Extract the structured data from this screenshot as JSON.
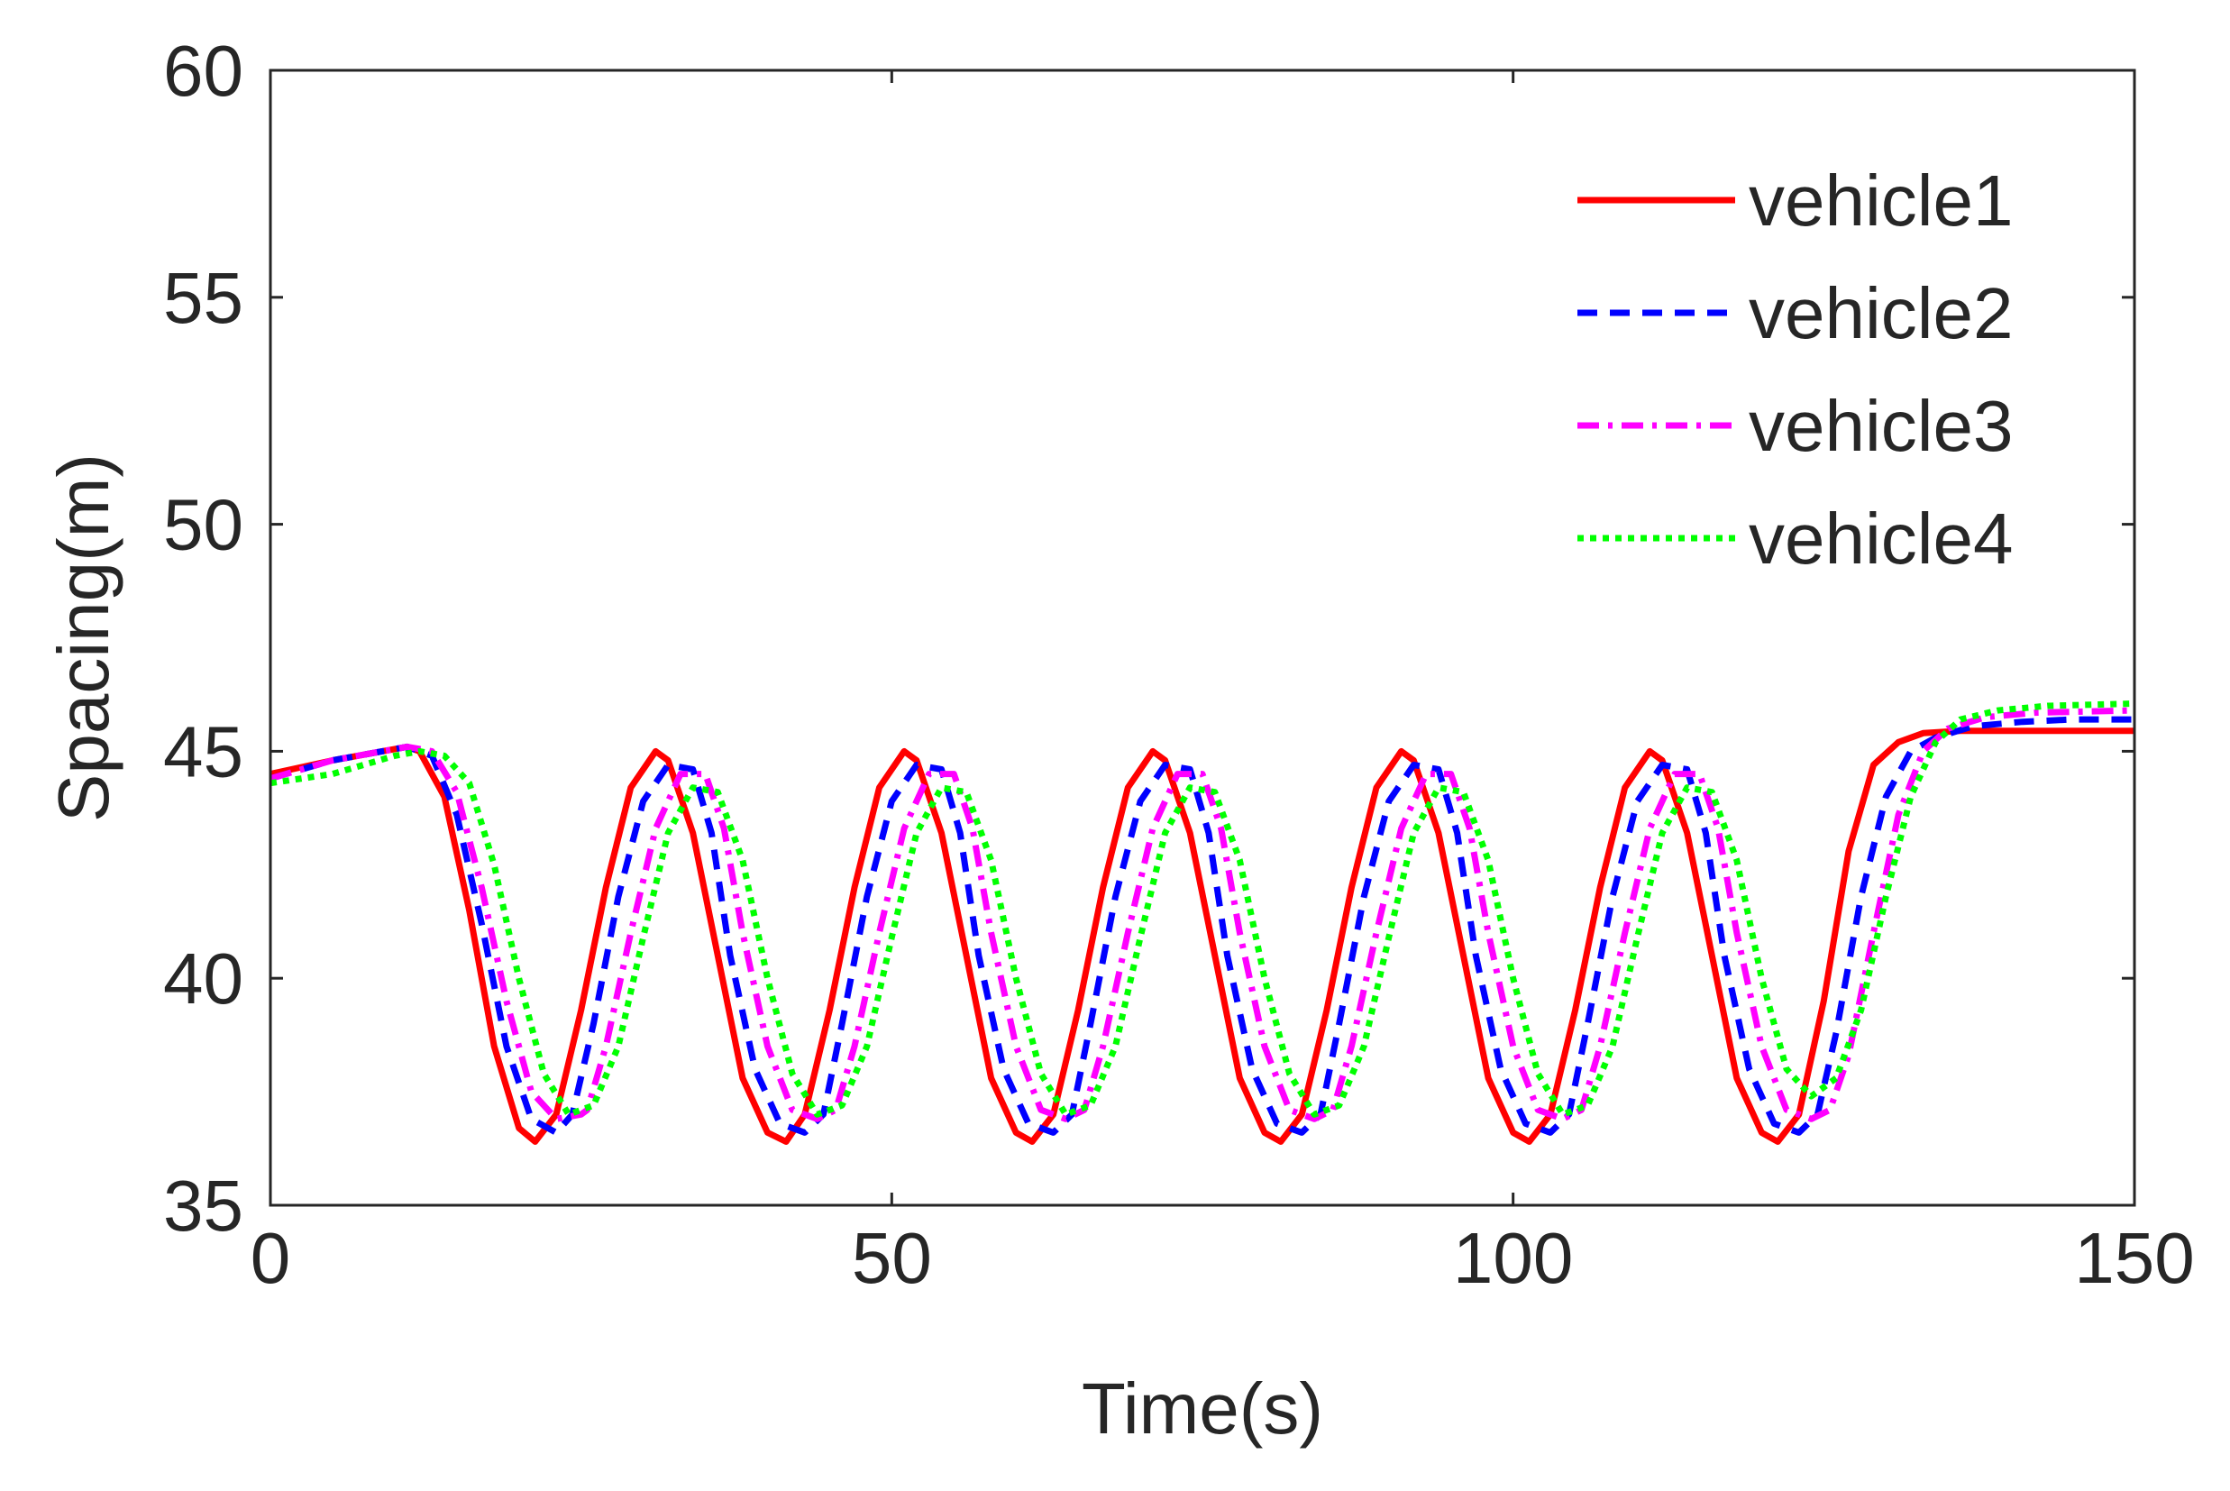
{
  "chart_data": {
    "type": "line",
    "title": "",
    "xlabel": "Time(s)",
    "ylabel": "Spacing(m)",
    "xlim": [
      0,
      150
    ],
    "ylim": [
      35,
      60
    ],
    "xticks": [
      0,
      50,
      100,
      150
    ],
    "yticks": [
      35,
      40,
      45,
      50,
      55,
      60
    ],
    "grid": false,
    "legend_position": "top-right",
    "series": [
      {
        "name": "vehicle1",
        "color": "#ff0000",
        "dash": "solid",
        "x": [
          0,
          5,
          11,
          12,
          14,
          16,
          18,
          20,
          21.3,
          23,
          25,
          27,
          29,
          31,
          32,
          34,
          36,
          38,
          40,
          41.5,
          43,
          45,
          47,
          49,
          51,
          52,
          54,
          56,
          58,
          60,
          61.3,
          63,
          65,
          67,
          69,
          71,
          72,
          74,
          76,
          78,
          80,
          81.3,
          83,
          85,
          87,
          89,
          91,
          92,
          94,
          96,
          98,
          100,
          101.3,
          103,
          105,
          107,
          109,
          111,
          112,
          114,
          116,
          118,
          120,
          121.3,
          123,
          125,
          127,
          129,
          131,
          133,
          136,
          140,
          145,
          150
        ],
        "y": [
          44.5,
          44.8,
          45.1,
          45.0,
          44.0,
          41.5,
          38.5,
          36.7,
          36.4,
          37.0,
          39.3,
          42.0,
          44.2,
          45.0,
          44.8,
          43.2,
          40.5,
          37.8,
          36.6,
          36.4,
          37.0,
          39.3,
          42.0,
          44.2,
          45.0,
          44.8,
          43.2,
          40.5,
          37.8,
          36.6,
          36.4,
          37.0,
          39.3,
          42.0,
          44.2,
          45.0,
          44.8,
          43.2,
          40.5,
          37.8,
          36.6,
          36.4,
          37.0,
          39.3,
          42.0,
          44.2,
          45.0,
          44.8,
          43.2,
          40.5,
          37.8,
          36.6,
          36.4,
          37.0,
          39.3,
          42.0,
          44.2,
          45.0,
          44.8,
          43.2,
          40.5,
          37.8,
          36.6,
          36.4,
          37.0,
          39.5,
          42.8,
          44.7,
          45.2,
          45.4,
          45.45,
          45.45,
          45.45,
          45.45
        ]
      },
      {
        "name": "vehicle2",
        "color": "#0000ff",
        "dash": "dashed",
        "x": [
          0,
          5,
          11,
          13,
          15,
          17,
          19,
          21,
          23,
          24.3,
          26,
          28,
          30,
          32,
          34,
          35.5,
          37,
          39,
          41,
          43,
          44.5,
          46,
          48,
          50,
          52,
          54,
          55.5,
          57,
          59,
          61,
          63,
          64.5,
          66,
          68,
          70,
          72,
          74,
          75.5,
          77,
          79,
          81,
          83,
          84.5,
          86,
          88,
          90,
          92,
          94,
          95.5,
          97,
          99,
          101,
          103,
          104.5,
          106,
          108,
          110,
          112,
          114,
          115.5,
          117,
          119,
          121,
          123,
          124.5,
          126,
          128,
          130,
          132,
          134,
          137,
          141,
          145,
          150
        ],
        "y": [
          44.4,
          44.8,
          45.1,
          44.9,
          43.6,
          41.2,
          38.5,
          36.9,
          36.6,
          37.0,
          39.0,
          41.8,
          43.9,
          44.7,
          44.6,
          43.2,
          40.5,
          38.0,
          36.8,
          36.6,
          37.0,
          39.0,
          41.8,
          43.9,
          44.7,
          44.6,
          43.2,
          40.5,
          38.0,
          36.8,
          36.6,
          37.0,
          39.0,
          41.8,
          43.9,
          44.7,
          44.6,
          43.2,
          40.5,
          38.0,
          36.8,
          36.6,
          37.0,
          39.0,
          41.8,
          43.9,
          44.7,
          44.6,
          43.2,
          40.5,
          38.0,
          36.8,
          36.6,
          37.0,
          39.0,
          41.8,
          43.9,
          44.7,
          44.6,
          43.2,
          40.5,
          38.0,
          36.8,
          36.6,
          37.0,
          38.8,
          41.8,
          44.0,
          45.0,
          45.3,
          45.55,
          45.65,
          45.7,
          45.7
        ]
      },
      {
        "name": "vehicle3",
        "color": "#ff00ff",
        "dash": "dashdot",
        "x": [
          0,
          5,
          11,
          13,
          15,
          17,
          19,
          21,
          23,
          25,
          25.5,
          27,
          29,
          31,
          33,
          35,
          36.5,
          38,
          40,
          42,
          44,
          45.5,
          47,
          49,
          51,
          53,
          55,
          56.5,
          58,
          60,
          62,
          64,
          65.5,
          67,
          69,
          71,
          73,
          75,
          76.5,
          78,
          80,
          82,
          84,
          85.5,
          87,
          89,
          91,
          93,
          95,
          96.5,
          98,
          100,
          102,
          104,
          105.5,
          107,
          109,
          111,
          113,
          115,
          116.5,
          118,
          120,
          122,
          124,
          125.5,
          127,
          129,
          131,
          133,
          135,
          138,
          142,
          150
        ],
        "y": [
          44.4,
          44.8,
          45.1,
          45.0,
          44.1,
          42.0,
          39.5,
          37.5,
          36.9,
          37.0,
          37.1,
          38.5,
          41.0,
          43.3,
          44.5,
          44.5,
          43.3,
          41.0,
          38.5,
          37.1,
          36.9,
          37.1,
          38.5,
          41.0,
          43.3,
          44.5,
          44.5,
          43.3,
          41.0,
          38.5,
          37.1,
          36.9,
          37.1,
          38.5,
          41.0,
          43.3,
          44.5,
          44.5,
          43.3,
          41.0,
          38.5,
          37.1,
          36.9,
          37.1,
          38.5,
          41.0,
          43.3,
          44.5,
          44.5,
          43.3,
          41.0,
          38.5,
          37.1,
          36.9,
          37.1,
          38.5,
          41.0,
          43.3,
          44.5,
          44.5,
          43.3,
          41.0,
          38.5,
          37.1,
          36.9,
          37.1,
          38.3,
          41.0,
          43.6,
          45.0,
          45.5,
          45.75,
          45.85,
          45.9
        ]
      },
      {
        "name": "vehicle4",
        "color": "#00ff00",
        "dash": "dotted",
        "x": [
          0,
          5,
          10,
          12,
          14,
          16,
          18,
          20,
          22,
          24,
          26,
          28,
          30,
          32,
          34,
          36,
          38,
          40,
          42,
          44,
          46,
          48,
          50,
          52,
          54,
          56,
          58,
          60,
          62,
          64,
          66,
          68,
          70,
          72,
          74,
          76,
          78,
          80,
          82,
          84,
          86,
          88,
          90,
          92,
          94,
          96,
          98,
          100,
          102,
          104,
          106,
          108,
          110,
          112,
          114,
          116,
          118,
          120,
          122,
          124,
          126,
          128,
          130,
          132,
          134,
          136,
          139,
          143,
          150
        ],
        "y": [
          44.3,
          44.5,
          44.9,
          45.0,
          44.9,
          44.3,
          42.5,
          40.0,
          37.9,
          37.0,
          37.2,
          38.5,
          40.9,
          43.2,
          44.2,
          44.1,
          42.6,
          40.0,
          37.9,
          37.0,
          37.2,
          38.5,
          40.9,
          43.2,
          44.2,
          44.1,
          42.6,
          40.0,
          37.9,
          37.0,
          37.2,
          38.5,
          40.9,
          43.2,
          44.2,
          44.1,
          42.6,
          40.0,
          37.9,
          37.0,
          37.2,
          38.5,
          40.9,
          43.2,
          44.2,
          44.1,
          42.6,
          40.0,
          37.9,
          37.0,
          37.2,
          38.5,
          40.9,
          43.2,
          44.2,
          44.1,
          42.6,
          40.0,
          38.0,
          37.4,
          37.8,
          39.3,
          41.8,
          44.0,
          45.2,
          45.7,
          45.9,
          46.0,
          46.05
        ]
      }
    ]
  }
}
